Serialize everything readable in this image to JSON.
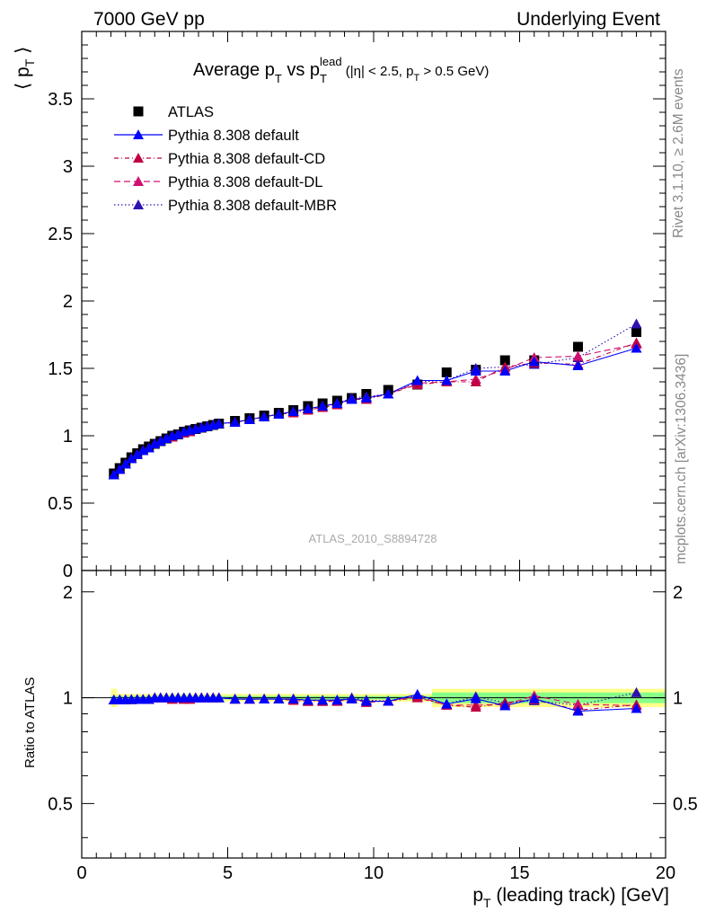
{
  "header": {
    "left": "7000 GeV pp",
    "right": "Underlying Event"
  },
  "side": {
    "rivet": "Rivet 3.1.10, ≥ 2.6M events",
    "mcplots": "mcplots.cern.ch [arXiv:1306.3436]"
  },
  "watermark": "ATLAS_2010_S8894728",
  "title": {
    "main": "Average p",
    "sub1": "T",
    "vs": " vs p",
    "sub2": "T",
    "sup2": "lead",
    "cuts_a": " (|η| < 2.5, p",
    "cuts_sub": "T",
    "cuts_b": " > 0.5 GeV)"
  },
  "axes": {
    "ylabel_top": "⟨ p",
    "ylabel_top_sub": "T",
    "ylabel_top_close": " ⟩",
    "ylabel_bottom": "Ratio to ATLAS",
    "xlabel": "p",
    "xlabel_sub": "T",
    "xlabel_rest": " (leading track) [GeV]"
  },
  "colors": {
    "atlas": "#000000",
    "default": "#0000ff",
    "cd": "#c00040",
    "dl": "#d01070",
    "mbr": "#3010b0",
    "band_inner": "#88ff88",
    "band_outer": "#ffff88"
  },
  "chart_data": {
    "type": "scatter",
    "title": "Average pT vs pT lead (|η| < 2.5, pT > 0.5 GeV)",
    "xlabel": "pT (leading track) [GeV]",
    "ylabel": "⟨ pT ⟩",
    "xlim": [
      0,
      20
    ],
    "ylim": [
      0,
      4
    ],
    "ratio_ylim": [
      0.35,
      2.3
    ],
    "x_ticks": [
      "0",
      "5",
      "10",
      "15",
      "20"
    ],
    "y_ticks": [
      "0",
      "0.5",
      "1",
      "1.5",
      "2",
      "2.5",
      "3",
      "3.5"
    ],
    "ratio_ticks": [
      "0.5",
      "1",
      "2"
    ],
    "legend_position": "top-left",
    "x": [
      1.1,
      1.3,
      1.5,
      1.7,
      1.9,
      2.1,
      2.3,
      2.5,
      2.7,
      2.9,
      3.1,
      3.3,
      3.5,
      3.7,
      3.9,
      4.1,
      4.3,
      4.5,
      4.7,
      5.25,
      5.75,
      6.25,
      6.75,
      7.25,
      7.75,
      8.25,
      8.75,
      9.25,
      9.75,
      10.5,
      11.5,
      12.5,
      13.5,
      14.5,
      15.5,
      17.0,
      19.0
    ],
    "series": [
      {
        "name": "ATLAS",
        "values": [
          0.72,
          0.76,
          0.8,
          0.84,
          0.87,
          0.9,
          0.92,
          0.94,
          0.96,
          0.98,
          1.0,
          1.01,
          1.03,
          1.04,
          1.05,
          1.06,
          1.07,
          1.08,
          1.09,
          1.11,
          1.13,
          1.15,
          1.17,
          1.19,
          1.22,
          1.24,
          1.26,
          1.28,
          1.31,
          1.34,
          1.38,
          1.47,
          1.49,
          1.56,
          1.56,
          1.66,
          1.77
        ]
      },
      {
        "name": "Pythia 8.308 default",
        "values": [
          0.71,
          0.75,
          0.79,
          0.83,
          0.86,
          0.89,
          0.91,
          0.94,
          0.96,
          0.98,
          1.0,
          1.01,
          1.03,
          1.04,
          1.05,
          1.06,
          1.07,
          1.08,
          1.09,
          1.1,
          1.12,
          1.14,
          1.16,
          1.18,
          1.2,
          1.22,
          1.24,
          1.27,
          1.28,
          1.31,
          1.41,
          1.41,
          1.48,
          1.48,
          1.55,
          1.52,
          1.65
        ]
      },
      {
        "name": "Pythia 8.308 default-CD",
        "values": [
          0.71,
          0.75,
          0.79,
          0.83,
          0.86,
          0.89,
          0.91,
          0.94,
          0.96,
          0.98,
          0.99,
          1.01,
          1.02,
          1.03,
          1.05,
          1.06,
          1.07,
          1.08,
          1.09,
          1.1,
          1.12,
          1.14,
          1.16,
          1.17,
          1.19,
          1.21,
          1.23,
          1.27,
          1.27,
          1.31,
          1.38,
          1.4,
          1.4,
          1.51,
          1.54,
          1.53,
          1.69
        ]
      },
      {
        "name": "Pythia 8.308 default-DL",
        "values": [
          0.71,
          0.75,
          0.79,
          0.83,
          0.86,
          0.89,
          0.91,
          0.94,
          0.96,
          0.98,
          0.99,
          1.01,
          1.02,
          1.03,
          1.05,
          1.06,
          1.07,
          1.08,
          1.09,
          1.1,
          1.12,
          1.14,
          1.16,
          1.18,
          1.2,
          1.22,
          1.24,
          1.27,
          1.28,
          1.31,
          1.39,
          1.4,
          1.42,
          1.49,
          1.58,
          1.59,
          1.68
        ]
      },
      {
        "name": "Pythia 8.308 default-MBR",
        "values": [
          0.71,
          0.75,
          0.79,
          0.83,
          0.86,
          0.89,
          0.91,
          0.94,
          0.96,
          0.98,
          1.0,
          1.01,
          1.03,
          1.04,
          1.05,
          1.06,
          1.07,
          1.08,
          1.09,
          1.1,
          1.12,
          1.14,
          1.16,
          1.18,
          1.2,
          1.22,
          1.24,
          1.28,
          1.29,
          1.31,
          1.4,
          1.41,
          1.5,
          1.51,
          1.53,
          1.58,
          1.83
        ]
      }
    ]
  }
}
